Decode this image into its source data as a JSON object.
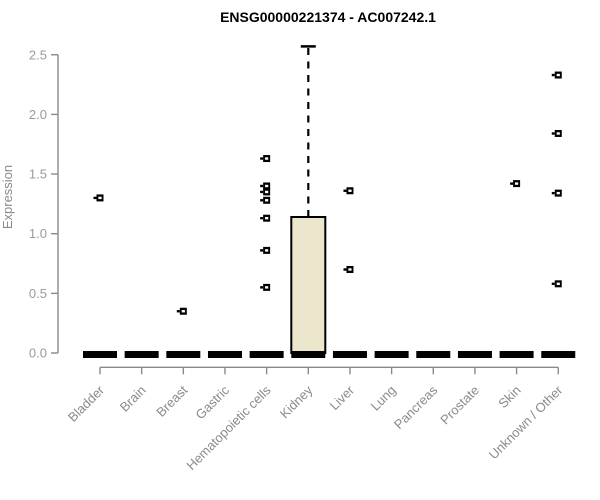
{
  "chart_data": {
    "type": "boxplot",
    "title": "ENSG00000221374 - AC007242.1",
    "ylabel": "Expression",
    "ylim": [
      0,
      2.5
    ],
    "yticks": [
      "0.0",
      "0.5",
      "1.0",
      "1.5",
      "2.0",
      "2.5"
    ],
    "grid": false,
    "legend": "none",
    "categories": [
      "Bladder",
      "Brain",
      "Breast",
      "Gastric",
      "Hematopoietic cells",
      "Kidney",
      "Liver",
      "Lung",
      "Pancreas",
      "Prostate",
      "Skin",
      "Unknown / Other"
    ],
    "boxes": [
      {
        "category": "Bladder",
        "q1": 0,
        "median": 0,
        "q3": 0,
        "whisker_low": 0,
        "whisker_high": 0,
        "outliers": [
          1.3
        ]
      },
      {
        "category": "Brain",
        "q1": 0,
        "median": 0,
        "q3": 0,
        "whisker_low": 0,
        "whisker_high": 0,
        "outliers": []
      },
      {
        "category": "Breast",
        "q1": 0,
        "median": 0,
        "q3": 0,
        "whisker_low": 0,
        "whisker_high": 0,
        "outliers": [
          0.35
        ]
      },
      {
        "category": "Gastric",
        "q1": 0,
        "median": 0,
        "q3": 0,
        "whisker_low": 0,
        "whisker_high": 0,
        "outliers": []
      },
      {
        "category": "Hematopoietic cells",
        "q1": 0,
        "median": 0,
        "q3": 0,
        "whisker_low": 0,
        "whisker_high": 0,
        "outliers": [
          1.63,
          1.4,
          1.35,
          1.28,
          1.13,
          0.86,
          0.55
        ]
      },
      {
        "category": "Kidney",
        "q1": 0,
        "median": 0,
        "q3": 1.14,
        "whisker_low": 0,
        "whisker_high": 2.57,
        "outliers": []
      },
      {
        "category": "Liver",
        "q1": 0,
        "median": 0,
        "q3": 0,
        "whisker_low": 0,
        "whisker_high": 0,
        "outliers": [
          1.36,
          0.7
        ]
      },
      {
        "category": "Lung",
        "q1": 0,
        "median": 0,
        "q3": 0,
        "whisker_low": 0,
        "whisker_high": 0,
        "outliers": []
      },
      {
        "category": "Pancreas",
        "q1": 0,
        "median": 0,
        "q3": 0,
        "whisker_low": 0,
        "whisker_high": 0,
        "outliers": []
      },
      {
        "category": "Prostate",
        "q1": 0,
        "median": 0,
        "q3": 0,
        "whisker_low": 0,
        "whisker_high": 0,
        "outliers": []
      },
      {
        "category": "Skin",
        "q1": 0,
        "median": 0,
        "q3": 0,
        "whisker_low": 0,
        "whisker_high": 0,
        "outliers": [
          1.42
        ]
      },
      {
        "category": "Unknown / Other",
        "q1": 0,
        "median": 0,
        "q3": 0,
        "whisker_low": 0,
        "whisker_high": 0,
        "outliers": [
          2.33,
          1.84,
          1.34,
          0.58
        ]
      }
    ],
    "colors": {
      "box_fill": "#ECE7CC",
      "box_stroke": "#000000",
      "zero_box": "#000000",
      "outlier": "#000000",
      "axis": "#8a8a8a",
      "ytick_text": "#9b9b9b",
      "xtick_text": "#8a8a8a",
      "title_text": "#000000",
      "background": "#ffffff"
    }
  }
}
